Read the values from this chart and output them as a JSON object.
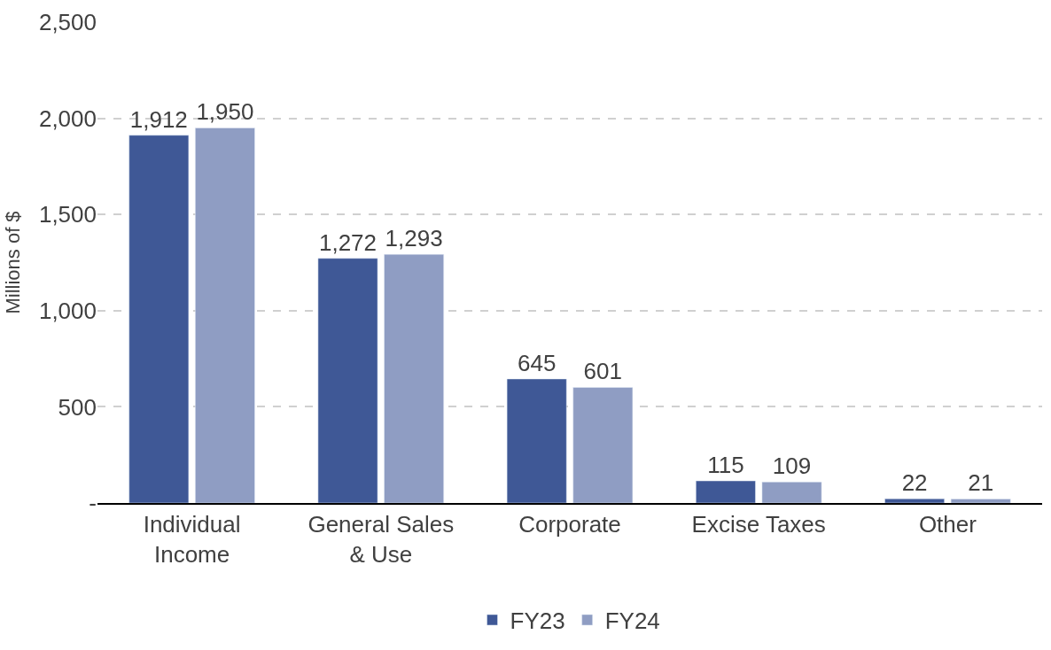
{
  "chart_data": {
    "type": "bar",
    "ylabel": "Millions of $",
    "categories": [
      "Individual Income",
      "General Sales & Use",
      "Corporate",
      "Excise Taxes",
      "Other"
    ],
    "series": [
      {
        "name": "FY23",
        "color": "#3f5896",
        "values": [
          1912,
          1272,
          645,
          115,
          22
        ],
        "value_labels": [
          "1,912",
          "1,272",
          "645",
          "115",
          "22"
        ]
      },
      {
        "name": "FY24",
        "color": "#8f9dc3",
        "values": [
          1950,
          1293,
          601,
          109,
          21
        ],
        "value_labels": [
          "1,950",
          "1,293",
          "601",
          "109",
          "21"
        ]
      }
    ],
    "ylim": [
      0,
      2500
    ],
    "yticks": [
      {
        "value": 0,
        "label": "-"
      },
      {
        "value": 500,
        "label": "500"
      },
      {
        "value": 1000,
        "label": "1,000"
      },
      {
        "value": 1500,
        "label": "1,500"
      },
      {
        "value": 2000,
        "label": "2,000"
      },
      {
        "value": 2500,
        "label": "2,500"
      }
    ],
    "grid": "y",
    "legend": "bottom"
  }
}
